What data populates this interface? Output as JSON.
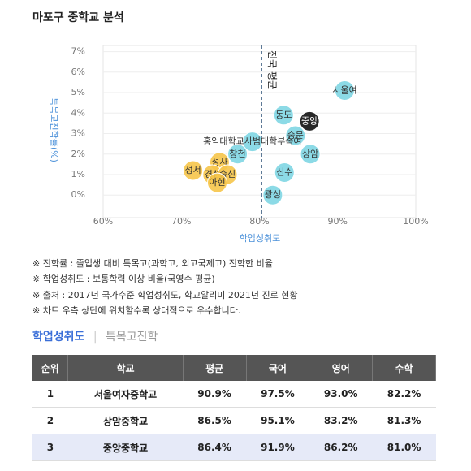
{
  "chart_data": {
    "type": "scatter",
    "title": "마포구 중학교 분석",
    "x_label": "학업성취도",
    "y_label": "특목고진학률(%)",
    "categories": [
      "서울여",
      "중앙",
      "상암",
      "동도",
      "숭문",
      "홍익대학교사범대학부속여",
      "창천",
      "신수",
      "광성",
      "성사",
      "성서",
      "경성",
      "숭신",
      "아현"
    ],
    "x": [
      90.9,
      86.4,
      86.5,
      83.1,
      84.6,
      79.1,
      77.2,
      83.2,
      81.7,
      74.9,
      71.5,
      74.0,
      75.9,
      74.6
    ],
    "values": [
      5.1,
      3.6,
      2.0,
      3.9,
      2.9,
      2.6,
      2.0,
      1.1,
      0,
      1.6,
      1.2,
      1.0,
      1.0,
      0.6
    ],
    "colors": [
      "#7fd6e3",
      "#111111",
      "#7fd6e3",
      "#7fd6e3",
      "#7fd6e3",
      "#7fd6e3",
      "#7fd6e3",
      "#7fd6e3",
      "#7fd6e3",
      "#f6c54a",
      "#f6c54a",
      "#f6c54a",
      "#f6c54a",
      "#f6c54a"
    ],
    "xlim": [
      60,
      100
    ],
    "ylim": [
      -1.1,
      7.3
    ],
    "xticks": [
      {
        "value": 60,
        "label": "60%"
      },
      {
        "value": 70,
        "label": "70%"
      },
      {
        "value": 80,
        "label": "80%"
      },
      {
        "value": 90,
        "label": "90%"
      },
      {
        "value": 100,
        "label": "100%"
      }
    ],
    "yticks": [
      {
        "value": 0,
        "label": "0%"
      },
      {
        "value": 1,
        "label": "1%"
      },
      {
        "value": 2,
        "label": "2%"
      },
      {
        "value": 3,
        "label": "3%"
      },
      {
        "value": 4,
        "label": "4%"
      },
      {
        "value": 5,
        "label": "5%"
      },
      {
        "value": 6,
        "label": "6%"
      },
      {
        "value": 7,
        "label": "7%"
      }
    ],
    "grid": true,
    "average_line": {
      "value": 80.3,
      "label": "전국 평균"
    }
  },
  "notes": [
    "※ 진학률 : 졸업생 대비 특목고(과학고, 외고국제고) 진학한 비율",
    "※ 학업성취도 : 보통학력 이상 비율(국영수 평균)",
    "※ 출처 : 2017년 국가수준 학업성취도, 학교알리미 2021년 진로 현황",
    "※ 차트 우측 상단에 위치할수록 상대적으로 우수합니다."
  ],
  "tabs": [
    "학업성취도",
    "특목고진학"
  ],
  "table": {
    "header": [
      "순위",
      "학교",
      "평균",
      "국어",
      "영어",
      "수학"
    ],
    "rows": [
      [
        "1",
        "서울여자중학교",
        "90.9%",
        "97.5%",
        "93.0%",
        "82.2%"
      ],
      [
        "2",
        "상암중학교",
        "86.5%",
        "95.1%",
        "83.2%",
        "81.3%"
      ],
      [
        "3",
        "중앙중학교",
        "86.4%",
        "91.9%",
        "86.2%",
        "81.0%"
      ]
    ]
  }
}
